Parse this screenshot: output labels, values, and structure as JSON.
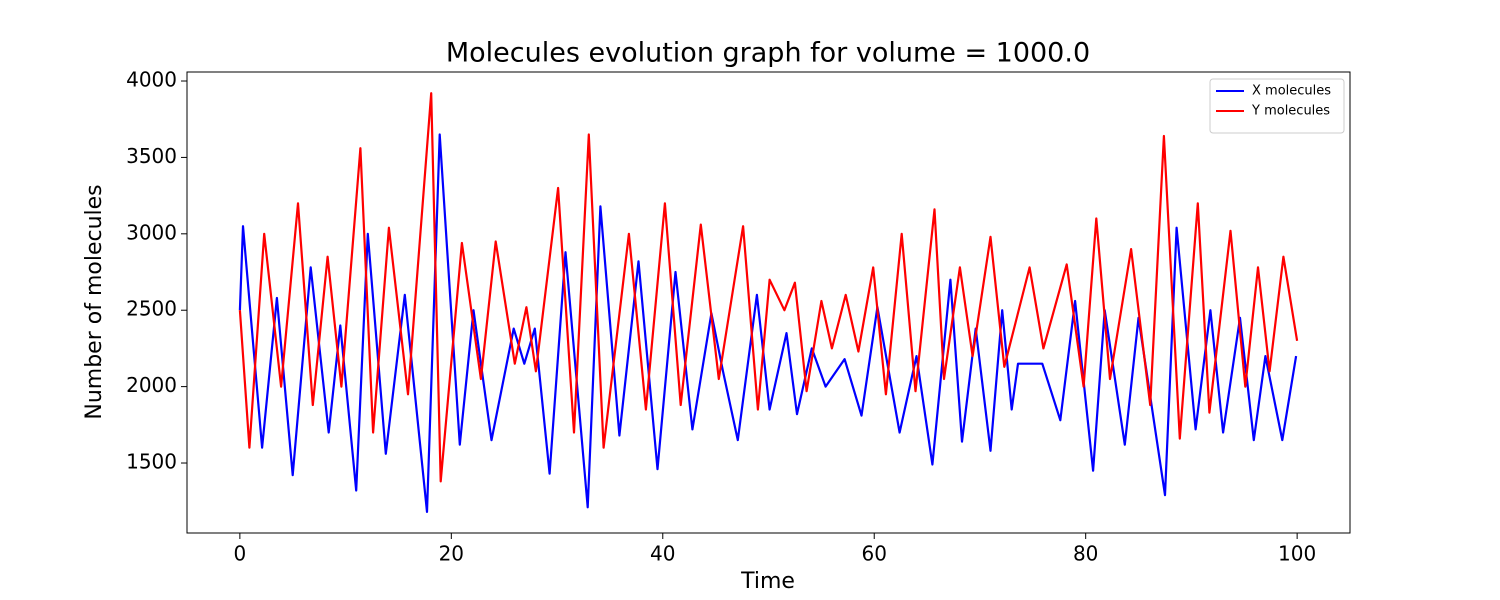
{
  "chart_data": {
    "type": "line",
    "title": "Molecules evolution graph for volume = 1000.0",
    "x_label": "Time",
    "y_label": "Number of molecules",
    "xlim": [
      -5,
      105
    ],
    "xticks": [
      0,
      20,
      40,
      60,
      80,
      100
    ],
    "ylim": [
      1042,
      4059
    ],
    "yticks": [
      1500,
      2000,
      2500,
      3000,
      3500,
      4000
    ],
    "grid": false,
    "legend": "upper right",
    "series": [
      {
        "name": "X molecules",
        "color": "#0000ff",
        "x": [
          0,
          0.3,
          2.1,
          3.5,
          5.0,
          6.7,
          8.4,
          9.5,
          11.0,
          12.1,
          13.8,
          15.6,
          17.7,
          18.9,
          20.8,
          22.1,
          23.8,
          25.9,
          26.9,
          27.9,
          29.3,
          30.8,
          32.9,
          34.1,
          35.9,
          37.7,
          39.5,
          41.2,
          42.8,
          44.6,
          45.7,
          47.1,
          48.9,
          50.1,
          51.7,
          52.7,
          54.1,
          55.4,
          57.2,
          58.8,
          60.3,
          62.4,
          64.0,
          65.5,
          67.2,
          68.3,
          69.6,
          71.0,
          72.1,
          73.0,
          73.6,
          75.9,
          77.6,
          79.0,
          80.7,
          81.8,
          83.7,
          85.0,
          87.5,
          88.6,
          90.4,
          91.8,
          93.0,
          94.6,
          95.9,
          97.0,
          98.6,
          99.9
        ],
        "values": [
          2500,
          3050,
          1600,
          2580,
          1420,
          2780,
          1700,
          2400,
          1320,
          3000,
          1560,
          2600,
          1180,
          3650,
          1620,
          2500,
          1650,
          2380,
          2150,
          2380,
          1430,
          2880,
          1210,
          3180,
          1680,
          2820,
          1460,
          2750,
          1720,
          2480,
          2100,
          1650,
          2600,
          1850,
          2350,
          1820,
          2250,
          2000,
          2180,
          1810,
          2520,
          1700,
          2200,
          1490,
          2700,
          1640,
          2380,
          1580,
          2500,
          1850,
          2150,
          2150,
          1780,
          2560,
          1450,
          2500,
          1620,
          2450,
          1290,
          3040,
          1720,
          2500,
          1700,
          2450,
          1650,
          2200,
          1650,
          2200
        ]
      },
      {
        "name": "Y molecules",
        "color": "#ff0000",
        "x": [
          0,
          0.9,
          2.3,
          3.9,
          5.5,
          6.9,
          8.3,
          9.6,
          11.4,
          12.6,
          14.1,
          15.9,
          18.1,
          19.0,
          21.0,
          22.8,
          24.2,
          26.0,
          27.1,
          28.0,
          30.1,
          31.6,
          33.0,
          34.4,
          36.8,
          38.4,
          40.2,
          41.7,
          43.6,
          45.3,
          47.6,
          49.0,
          50.1,
          51.5,
          52.5,
          53.6,
          55.0,
          56.0,
          57.3,
          58.5,
          59.9,
          61.1,
          62.6,
          63.9,
          65.7,
          66.6,
          68.1,
          69.3,
          71.0,
          72.3,
          74.7,
          76.0,
          78.2,
          79.8,
          81.0,
          82.3,
          84.3,
          86.1,
          87.4,
          88.9,
          90.6,
          91.7,
          93.7,
          95.1,
          96.3,
          97.4,
          98.7,
          100
        ],
        "values": [
          2500,
          1600,
          3000,
          2000,
          3200,
          1880,
          2850,
          2000,
          3560,
          1700,
          3040,
          1950,
          3920,
          1380,
          2940,
          2050,
          2950,
          2150,
          2520,
          2100,
          3300,
          1700,
          3650,
          1600,
          3000,
          1850,
          3200,
          1880,
          3060,
          2050,
          3050,
          1850,
          2700,
          2500,
          2680,
          1970,
          2560,
          2250,
          2600,
          2230,
          2780,
          1950,
          3000,
          1970,
          3160,
          2050,
          2780,
          2200,
          2980,
          2130,
          2780,
          2250,
          2800,
          2000,
          3100,
          2050,
          2900,
          1880,
          3640,
          1660,
          3200,
          1830,
          3020,
          2000,
          2780,
          2100,
          2850,
          2300
        ]
      }
    ]
  }
}
